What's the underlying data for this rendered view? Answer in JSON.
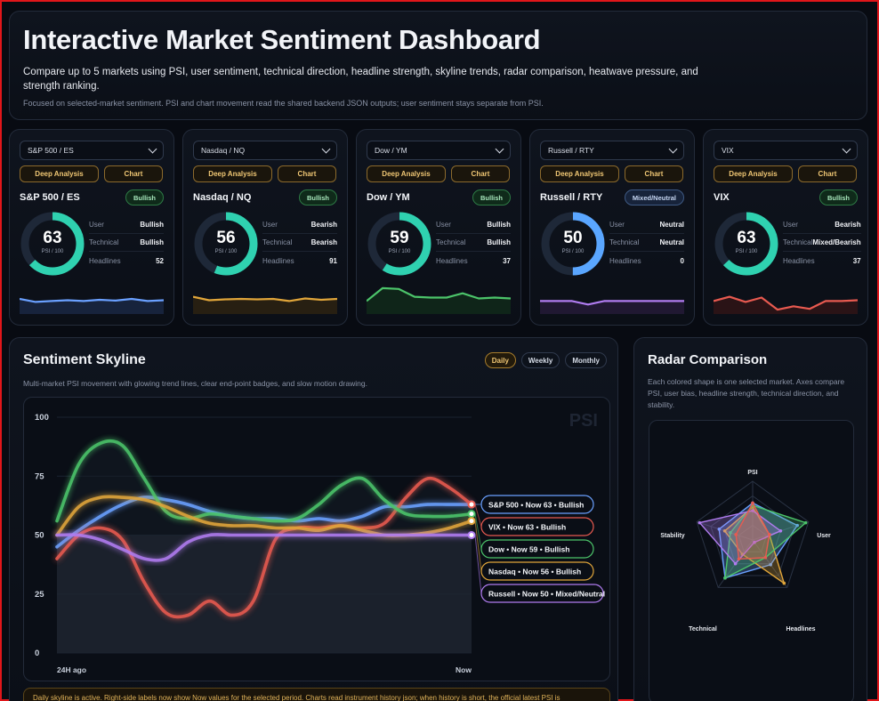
{
  "header": {
    "title": "Interactive Market Sentiment Dashboard",
    "subtitle": "Compare up to 5 markets using PSI, user sentiment, technical direction, headline strength, skyline trends, radar comparison, heatwave pressure, and strength ranking.",
    "note": "Focused on selected-market sentiment. PSI and chart movement read the shared backend JSON outputs; user sentiment stays separate from PSI."
  },
  "labels": {
    "deep_analysis": "Deep Analysis",
    "chart": "Chart",
    "user": "User",
    "technical": "Technical",
    "headlines": "Headlines",
    "psi_unit": "PSI / 100"
  },
  "cards": [
    {
      "select": "S&P 500 / ES",
      "name": "S&P 500 / ES",
      "badge": "Bullish",
      "badge_type": "bull",
      "psi": 63,
      "user": "Bullish",
      "technical": "Bullish",
      "headlines": "52",
      "color": "#6aa0ff",
      "fill": "#182640",
      "spark": [
        35,
        28,
        30,
        32,
        30,
        33,
        31,
        35,
        30,
        32
      ]
    },
    {
      "select": "Nasdaq / NQ",
      "name": "Nasdaq / NQ",
      "badge": "Bullish",
      "badge_type": "bull",
      "psi": 56,
      "user": "Bearish",
      "technical": "Bearish",
      "headlines": "91",
      "color": "#e0a53a",
      "fill": "#2a2112",
      "spark": [
        40,
        32,
        34,
        35,
        34,
        35,
        30,
        36,
        33,
        35
      ]
    },
    {
      "select": "Dow / YM",
      "name": "Dow / YM",
      "badge": "Bullish",
      "badge_type": "bull",
      "psi": 59,
      "user": "Bullish",
      "technical": "Bullish",
      "headlines": "37",
      "color": "#4cc46a",
      "fill": "#10281a",
      "spark": [
        30,
        60,
        58,
        40,
        38,
        38,
        48,
        36,
        38,
        36
      ]
    },
    {
      "select": "Russell / RTY",
      "name": "Russell / RTY",
      "badge": "Mixed/Neutral",
      "badge_type": "neu",
      "psi": 50,
      "user": "Neutral",
      "technical": "Neutral",
      "headlines": "0",
      "color": "#b07cf0",
      "fill": "#221a35",
      "spark": [
        30,
        30,
        30,
        22,
        30,
        30,
        30,
        30,
        30,
        30
      ]
    },
    {
      "select": "VIX",
      "name": "VIX",
      "badge": "Bullish",
      "badge_type": "bull",
      "psi": 63,
      "user": "Bearish",
      "technical": "Mixed/Bearish",
      "headlines": "37",
      "color": "#e85a50",
      "fill": "#2e1416",
      "spark": [
        30,
        40,
        28,
        38,
        10,
        18,
        12,
        30,
        30,
        32
      ]
    }
  ],
  "skyline": {
    "title": "Sentiment Skyline",
    "description": "Multi-market PSI movement with glowing trend lines, clear end-point badges, and slow motion drawing.",
    "tabs": [
      "Daily",
      "Weekly",
      "Monthly"
    ],
    "active_tab": "Daily",
    "watermark": "PSI",
    "info": "Daily skyline is active. Right-side labels now show Now values for the selected period. Charts read instrument history json; when history is short, the official latest PSI is"
  },
  "chart_data": {
    "type": "line",
    "x": [
      "24H ago",
      "",
      "",
      "",
      "",
      "",
      "",
      "",
      "",
      "",
      "",
      "",
      "",
      "",
      "",
      "",
      "",
      "",
      "",
      "Now"
    ],
    "y_ticks": [
      0,
      25,
      50,
      75,
      100
    ],
    "ylim": [
      0,
      100
    ],
    "series": [
      {
        "name": "S&P 500",
        "color": "#6aa0ff",
        "values": [
          45,
          52,
          58,
          63,
          66,
          65,
          63,
          60,
          58,
          57,
          57,
          56,
          57,
          56,
          58,
          62,
          62,
          63,
          63,
          63
        ]
      },
      {
        "name": "VIX",
        "color": "#e85a50",
        "values": [
          40,
          50,
          53,
          48,
          30,
          17,
          16,
          22,
          16,
          22,
          48,
          53,
          53,
          54,
          53,
          55,
          66,
          74,
          70,
          63
        ]
      },
      {
        "name": "Dow",
        "color": "#4cc46a",
        "values": [
          56,
          80,
          89,
          88,
          74,
          60,
          57,
          59,
          58,
          57,
          56,
          57,
          63,
          71,
          74,
          65,
          59,
          58,
          58,
          59
        ]
      },
      {
        "name": "Nasdaq",
        "color": "#e0a53a",
        "values": [
          50,
          62,
          66,
          66,
          65,
          62,
          58,
          55,
          54,
          54,
          53,
          53,
          52,
          54,
          52,
          50,
          50,
          51,
          53,
          56
        ]
      },
      {
        "name": "Russell",
        "color": "#b07cf0",
        "values": [
          50,
          50,
          48,
          44,
          40,
          40,
          47,
          50,
          50,
          50,
          50,
          50,
          50,
          50,
          50,
          50,
          50,
          50,
          50,
          50
        ]
      }
    ],
    "end_labels": [
      {
        "text": "S&P 500 • Now 63 • Bullish",
        "color": "#6aa0ff"
      },
      {
        "text": "VIX • Now 63 • Bullish",
        "color": "#e85a50"
      },
      {
        "text": "Dow • Now 59 • Bullish",
        "color": "#4cc46a"
      },
      {
        "text": "Nasdaq • Now 56 • Bullish",
        "color": "#e0a53a"
      },
      {
        "text": "Russell • Now 50 • Mixed/Neutral",
        "color": "#b07cf0"
      }
    ]
  },
  "radar": {
    "title": "Radar Comparison",
    "description": "Each colored shape is one selected market. Axes compare PSI, user bias, headline strength, technical direction, and stability.",
    "axes": [
      "PSI",
      "User",
      "Headlines",
      "Technical",
      "Stability"
    ],
    "series": [
      {
        "color": "#6aa0ff",
        "values": [
          0.63,
          0.8,
          0.52,
          0.8,
          0.6
        ]
      },
      {
        "color": "#e0a53a",
        "values": [
          0.56,
          0.3,
          0.91,
          0.3,
          0.5
        ]
      },
      {
        "color": "#4cc46a",
        "values": [
          0.59,
          0.95,
          0.37,
          0.8,
          0.4
        ]
      },
      {
        "color": "#b07cf0",
        "values": [
          0.5,
          0.5,
          0.05,
          0.5,
          0.95
        ]
      },
      {
        "color": "#e85a50",
        "values": [
          0.63,
          0.3,
          0.37,
          0.4,
          0.3
        ]
      }
    ]
  }
}
